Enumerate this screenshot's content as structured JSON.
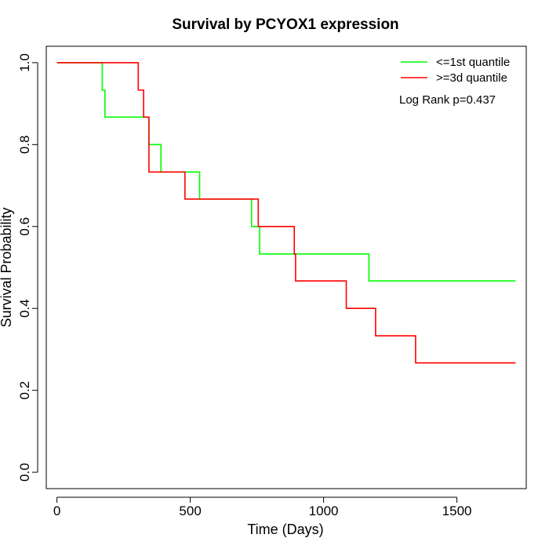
{
  "chart_data": {
    "type": "line",
    "title": "Survival by PCYOX1 expression",
    "xlabel": "Time (Days)",
    "ylabel": "Survival Probability",
    "xlim": [
      -40,
      1760
    ],
    "ylim": [
      -0.04,
      1.04
    ],
    "x_ticks": [
      0,
      500,
      1000,
      1500
    ],
    "x_tick_labels": [
      "0",
      "500",
      "1000",
      "1500"
    ],
    "y_ticks": [
      0.0,
      0.2,
      0.4,
      0.6,
      0.8,
      1.0
    ],
    "y_tick_labels": [
      "0.0",
      "0.2",
      "0.4",
      "0.6",
      "0.8",
      "1.0"
    ],
    "grid": false,
    "legend_position": "top-right",
    "series": [
      {
        "name": "<=1st quantile",
        "color": "#00ff00",
        "step_points": [
          [
            0,
            1.0
          ],
          [
            170,
            0.933
          ],
          [
            180,
            0.867
          ],
          [
            345,
            0.8
          ],
          [
            390,
            0.733
          ],
          [
            535,
            0.667
          ],
          [
            730,
            0.6
          ],
          [
            760,
            0.533
          ],
          [
            1170,
            0.467
          ],
          [
            1720,
            0.467
          ]
        ]
      },
      {
        "name": ">=3d quantile",
        "color": "#ff0000",
        "step_points": [
          [
            0,
            1.0
          ],
          [
            305,
            0.933
          ],
          [
            325,
            0.867
          ],
          [
            345,
            0.733
          ],
          [
            480,
            0.667
          ],
          [
            755,
            0.6
          ],
          [
            890,
            0.533
          ],
          [
            895,
            0.467
          ],
          [
            1085,
            0.4
          ],
          [
            1195,
            0.333
          ],
          [
            1345,
            0.267
          ],
          [
            1720,
            0.267
          ]
        ]
      }
    ],
    "annotations": [
      "Log Rank p=0.437"
    ]
  }
}
